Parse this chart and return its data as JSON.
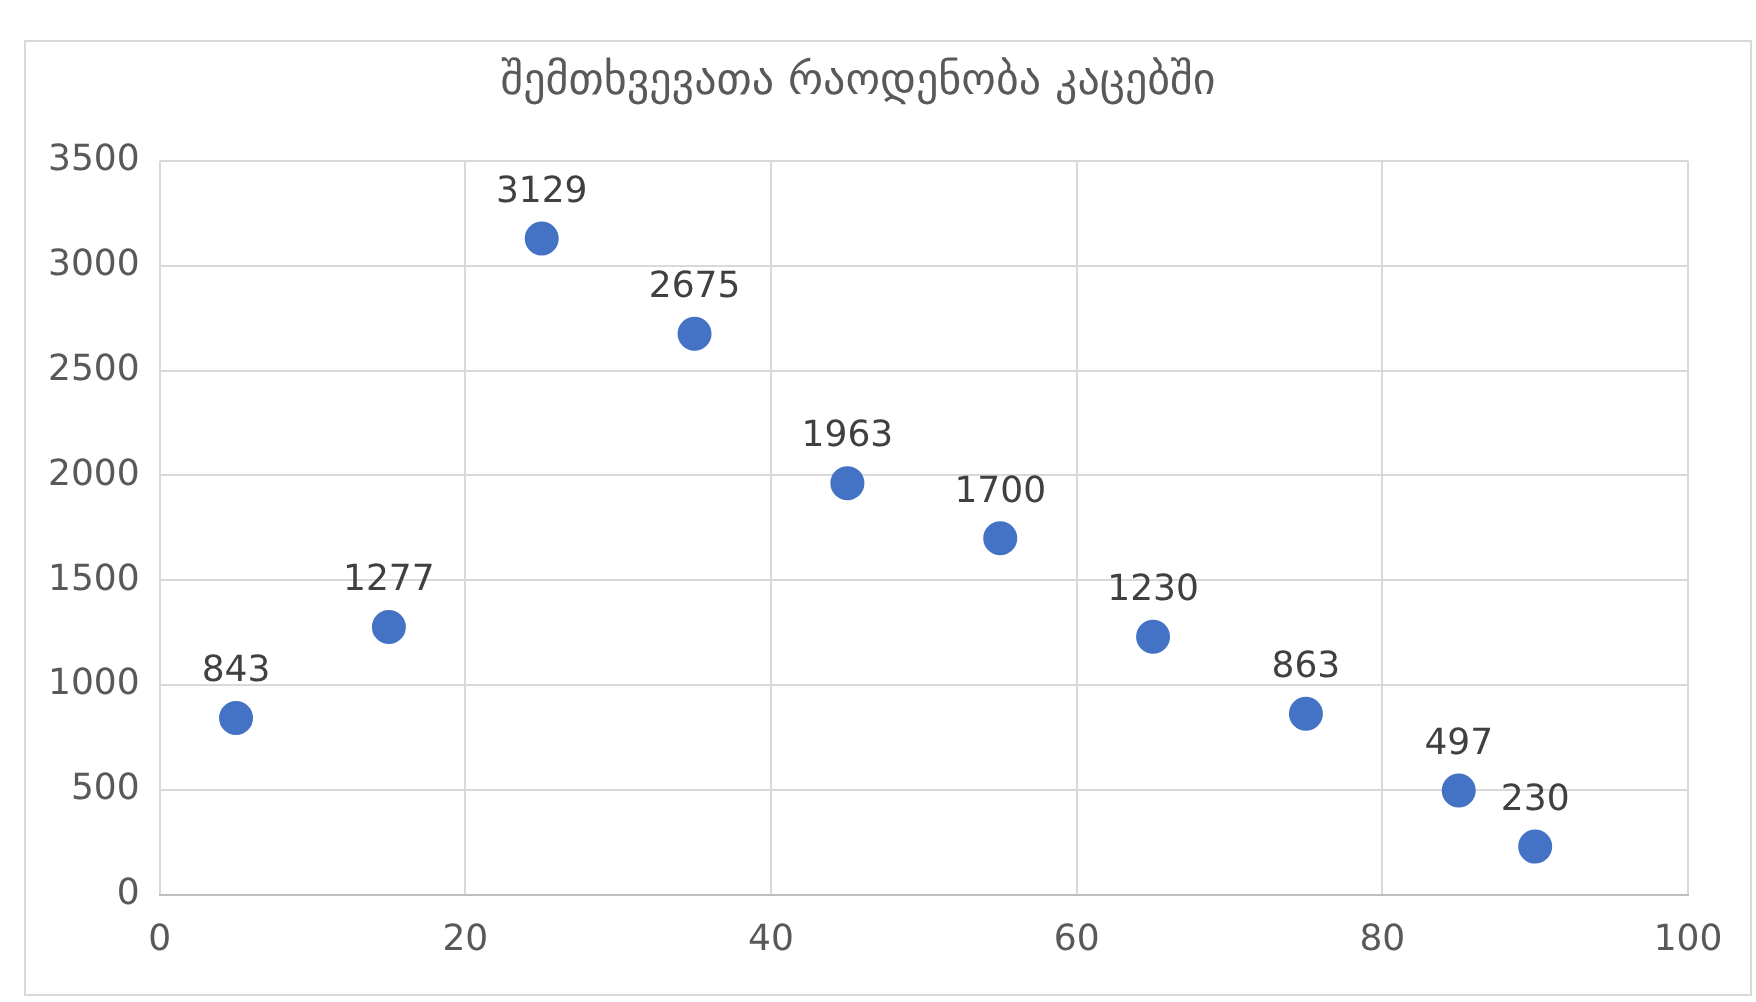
{
  "chart_data": {
    "type": "scatter",
    "title": "შემთხვევათა რაოდენობა კაცებში",
    "x": [
      5,
      15,
      25,
      35,
      45,
      55,
      65,
      75,
      85,
      90
    ],
    "values": [
      843,
      1277,
      3129,
      2675,
      1963,
      1700,
      1230,
      863,
      497,
      230
    ],
    "color": "#4472c4",
    "marker": "circle",
    "data_labels": true,
    "grid": true,
    "legend": false,
    "xlim": [
      0,
      100
    ],
    "xticks": [
      0,
      20,
      40,
      60,
      80,
      100
    ],
    "ylim": [
      0,
      3500
    ],
    "yticks": [
      0,
      500,
      1000,
      1500,
      2000,
      2500,
      3000,
      3500
    ]
  }
}
